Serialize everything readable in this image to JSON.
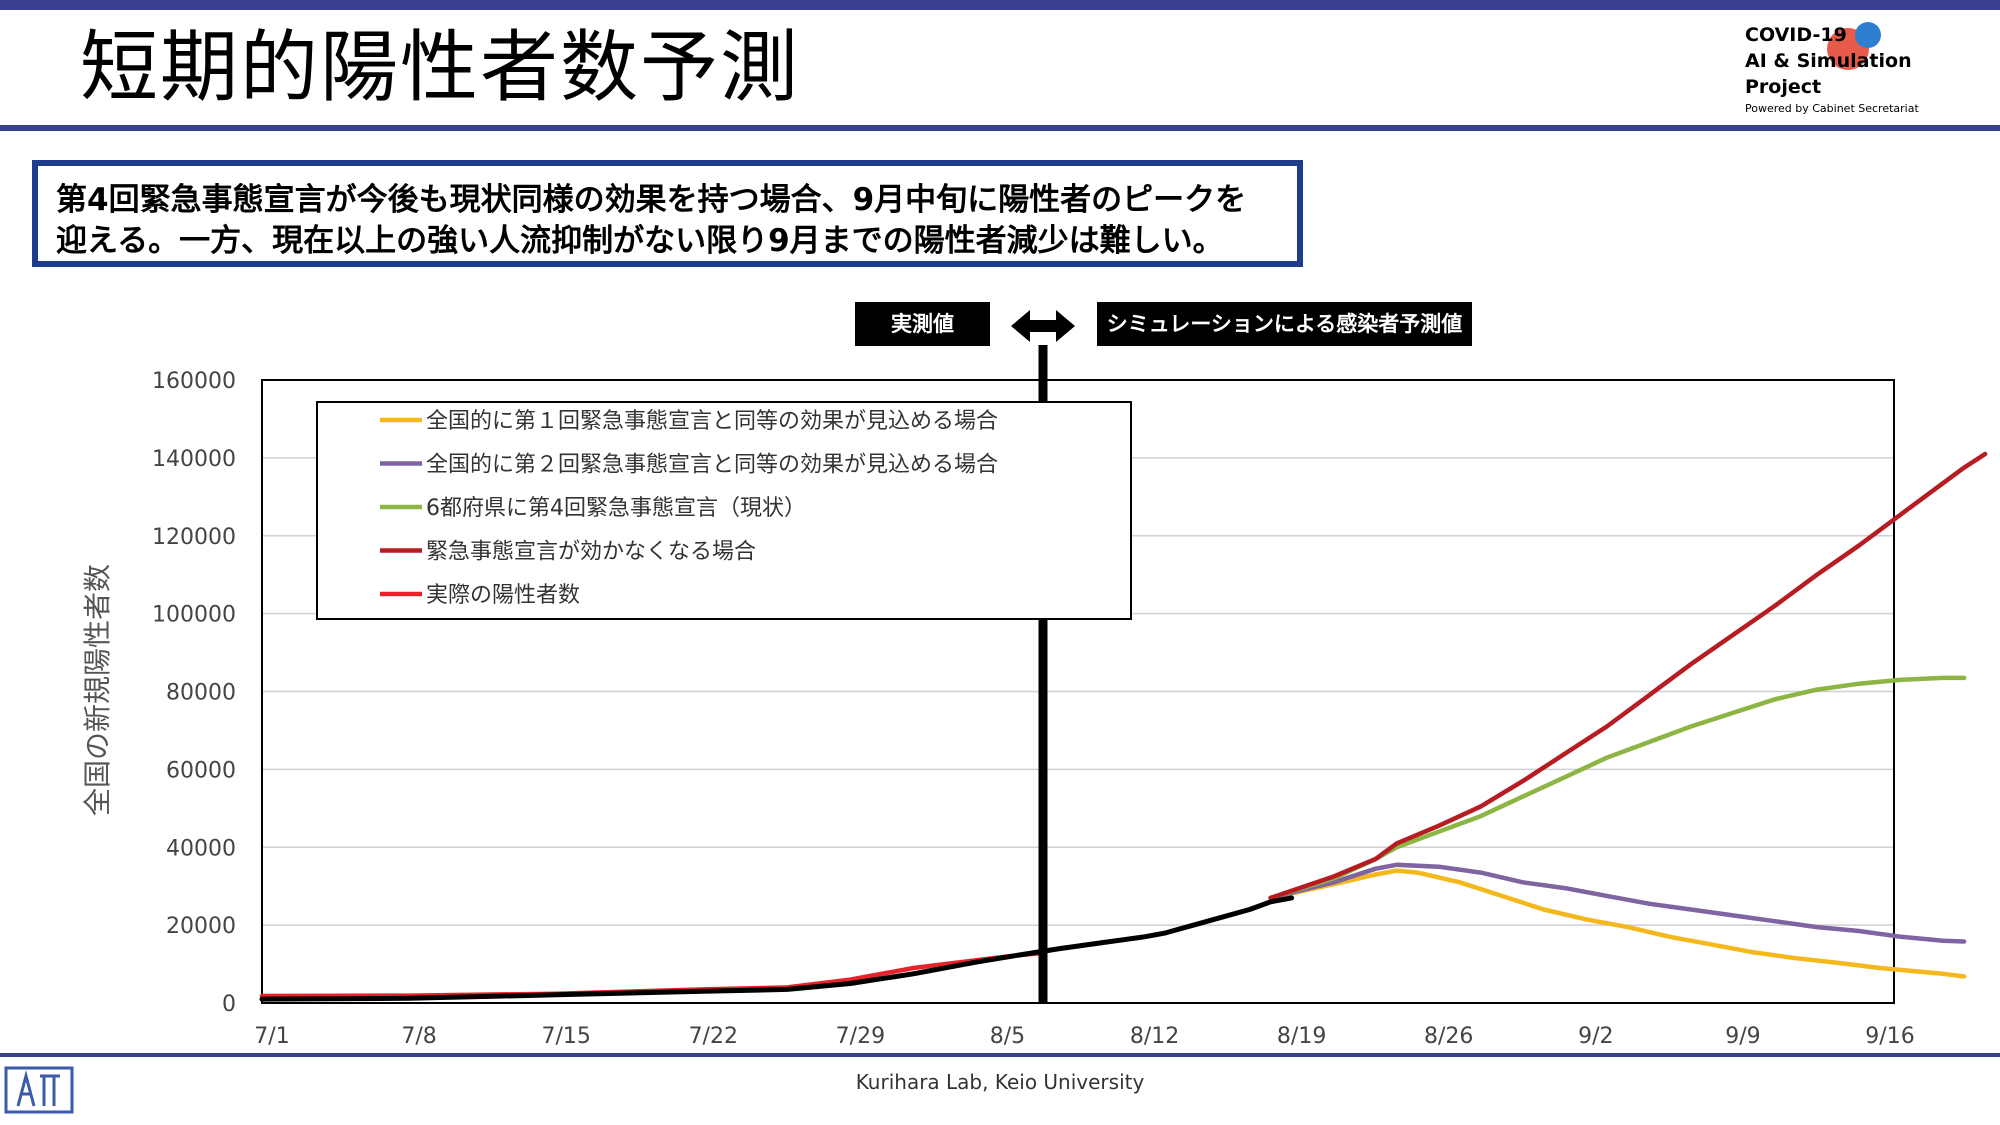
{
  "header": {
    "title": "短期的陽性者数予測",
    "logo_line1": "COVID-19",
    "logo_line2": "AI & Simulation Project",
    "logo_line3": "Powered by Cabinet Secretariat"
  },
  "callout": {
    "line1": "第4回緊急事態宣言が今後も現状同様の効果を持つ場合、9月中旬に陽性者のピークを",
    "line2": "迎える。一方、現在以上の強い人流抑制がない限り9月までの陽性者減少は難しい。"
  },
  "tags": {
    "observed": "実測値",
    "simulated": "シミュレーションによる感染者予測値"
  },
  "footer": {
    "credit": "Kurihara Lab, Keio University"
  },
  "colors": {
    "brand": "#3b3f8f",
    "callout_border": "#1f3b8c"
  },
  "chart_data": {
    "type": "line",
    "ylabel": "全国の新規陽性者数",
    "ylim": [
      0,
      160000
    ],
    "yticks": [
      "0",
      "20000",
      "40000",
      "60000",
      "80000",
      "100000",
      "120000",
      "140000",
      "160000"
    ],
    "xticks": [
      "7/1",
      "7/8",
      "7/15",
      "7/22",
      "7/29",
      "8/5",
      "8/12",
      "8/19",
      "8/26",
      "9/2",
      "9/9",
      "9/16"
    ],
    "x_start": "2021-07-01",
    "observed_until": "2021-08-06",
    "legend_position": "top-left",
    "series": [
      {
        "name": "全国的に第１回緊急事態宣言と同等の効果が見込める場合",
        "color": "#f5b81c",
        "points": [
          [
            48,
            27000
          ],
          [
            51,
            30500
          ],
          [
            53,
            33000
          ],
          [
            54,
            34000
          ],
          [
            55,
            33500
          ],
          [
            57,
            31000
          ],
          [
            59,
            27500
          ],
          [
            61,
            24000
          ],
          [
            63,
            21500
          ],
          [
            65,
            19500
          ],
          [
            67,
            17000
          ],
          [
            69,
            15000
          ],
          [
            71,
            13000
          ],
          [
            73,
            11500
          ],
          [
            75,
            10300
          ],
          [
            77,
            9000
          ],
          [
            79,
            8000
          ],
          [
            80,
            7500
          ],
          [
            81,
            6800
          ]
        ]
      },
      {
        "name": "全国的に第２回緊急事態宣言と同等の効果が見込める場合",
        "color": "#8064a2",
        "points": [
          [
            48,
            27000
          ],
          [
            51,
            31000
          ],
          [
            53,
            34500
          ],
          [
            54,
            35500
          ],
          [
            56,
            35000
          ],
          [
            58,
            33500
          ],
          [
            60,
            31000
          ],
          [
            62,
            29500
          ],
          [
            64,
            27500
          ],
          [
            66,
            25500
          ],
          [
            68,
            24000
          ],
          [
            70,
            22500
          ],
          [
            72,
            21000
          ],
          [
            74,
            19500
          ],
          [
            76,
            18500
          ],
          [
            78,
            17000
          ],
          [
            80,
            16000
          ],
          [
            81,
            15800
          ]
        ]
      },
      {
        "name": "6都府県に第4回緊急事態宣言（現状）",
        "color": "#8db543",
        "points": [
          [
            48,
            27000
          ],
          [
            51,
            32000
          ],
          [
            53,
            37000
          ],
          [
            54,
            40000
          ],
          [
            56,
            44000
          ],
          [
            58,
            48000
          ],
          [
            60,
            53000
          ],
          [
            62,
            58000
          ],
          [
            64,
            63000
          ],
          [
            66,
            67000
          ],
          [
            68,
            71000
          ],
          [
            70,
            74500
          ],
          [
            72,
            78000
          ],
          [
            74,
            80500
          ],
          [
            76,
            82000
          ],
          [
            78,
            83000
          ],
          [
            80,
            83500
          ],
          [
            81,
            83500
          ]
        ]
      },
      {
        "name": "緊急事態宣言が効かなくなる場合",
        "color": "#b71c22",
        "points": [
          [
            48,
            27000
          ],
          [
            51,
            32500
          ],
          [
            53,
            37000
          ],
          [
            54,
            41000
          ],
          [
            56,
            45500
          ],
          [
            58,
            50500
          ],
          [
            60,
            57000
          ],
          [
            62,
            64000
          ],
          [
            64,
            71000
          ],
          [
            66,
            79000
          ],
          [
            68,
            87000
          ],
          [
            70,
            94500
          ],
          [
            72,
            102000
          ],
          [
            74,
            110000
          ],
          [
            76,
            117500
          ],
          [
            78,
            125500
          ],
          [
            80,
            133500
          ],
          [
            81,
            137500
          ],
          [
            82,
            141000
          ]
        ]
      },
      {
        "name": "実際の陽性者数",
        "color": "#e8222a",
        "points": [
          [
            0,
            1800
          ],
          [
            7,
            1900
          ],
          [
            14,
            2400
          ],
          [
            21,
            3500
          ],
          [
            25,
            4000
          ],
          [
            28,
            6000
          ],
          [
            31,
            9000
          ],
          [
            34,
            11000
          ],
          [
            36,
            12300
          ],
          [
            37,
            12800
          ]
        ]
      },
      {
        "name": "",
        "color": "#000000",
        "points": [
          [
            0,
            1000
          ],
          [
            7,
            1200
          ],
          [
            14,
            2100
          ],
          [
            21,
            3000
          ],
          [
            25,
            3500
          ],
          [
            28,
            5000
          ],
          [
            31,
            7500
          ],
          [
            34,
            10500
          ],
          [
            36,
            12300
          ],
          [
            38,
            14000
          ],
          [
            40,
            15500
          ],
          [
            42,
            17000
          ],
          [
            43,
            18000
          ],
          [
            45,
            21000
          ],
          [
            47,
            24000
          ],
          [
            48,
            26000
          ],
          [
            49,
            27000
          ]
        ]
      }
    ]
  }
}
